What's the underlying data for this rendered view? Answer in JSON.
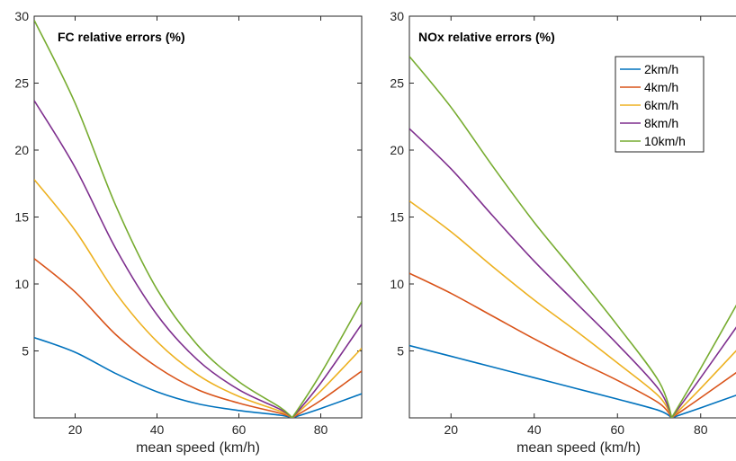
{
  "chart_data": [
    {
      "type": "line",
      "title": "FC relative errors (%)",
      "xlabel": "mean speed (km/h)",
      "ylabel": "",
      "xlim": [
        10,
        90
      ],
      "ylim": [
        0,
        30
      ],
      "xticks": [
        20,
        40,
        60,
        80
      ],
      "yticks": [
        5,
        10,
        15,
        20,
        25,
        30
      ],
      "grid": false,
      "series": [
        {
          "name": "2km/h",
          "color": "#0072BD",
          "x": [
            10,
            20,
            30,
            40,
            50,
            60,
            70,
            73,
            80,
            90
          ],
          "y": [
            6.0,
            4.9,
            3.3,
            1.95,
            1.05,
            0.55,
            0.2,
            0.0,
            0.7,
            1.8
          ]
        },
        {
          "name": "4km/h",
          "color": "#D95319",
          "x": [
            10,
            20,
            30,
            40,
            50,
            60,
            70,
            73,
            80,
            90
          ],
          "y": [
            11.9,
            9.4,
            6.2,
            3.8,
            2.1,
            1.1,
            0.35,
            0.0,
            1.3,
            3.5
          ]
        },
        {
          "name": "6km/h",
          "color": "#EDB120",
          "x": [
            10,
            20,
            30,
            40,
            50,
            60,
            70,
            73,
            80,
            90
          ],
          "y": [
            17.8,
            14.0,
            9.3,
            5.7,
            3.2,
            1.6,
            0.5,
            0.0,
            2.0,
            5.2
          ]
        },
        {
          "name": "8km/h",
          "color": "#7E2F8E",
          "x": [
            10,
            20,
            30,
            40,
            50,
            60,
            70,
            73,
            80,
            90
          ],
          "y": [
            23.7,
            18.7,
            12.6,
            7.7,
            4.3,
            2.1,
            0.65,
            0.0,
            2.6,
            7.0
          ]
        },
        {
          "name": "10km/h",
          "color": "#77AC30",
          "x": [
            10,
            20,
            30,
            40,
            50,
            60,
            70,
            73,
            80,
            90
          ],
          "y": [
            29.7,
            23.5,
            15.8,
            9.6,
            5.4,
            2.7,
            0.8,
            0.0,
            3.3,
            8.7
          ]
        }
      ]
    },
    {
      "type": "line",
      "title": "NOx relative errors (%)",
      "xlabel": "mean speed (km/h)",
      "ylabel": "",
      "xlim": [
        10,
        90
      ],
      "ylim": [
        0,
        30
      ],
      "xticks": [
        20,
        40,
        60,
        80
      ],
      "yticks": [
        5,
        10,
        15,
        20,
        25,
        30
      ],
      "grid": false,
      "legend": "top-right",
      "series": [
        {
          "name": "2km/h",
          "color": "#0072BD",
          "x": [
            10,
            20,
            30,
            40,
            50,
            60,
            70,
            73,
            80,
            90
          ],
          "y": [
            5.4,
            4.6,
            3.8,
            3.0,
            2.2,
            1.4,
            0.55,
            0.0,
            0.75,
            1.85
          ]
        },
        {
          "name": "4km/h",
          "color": "#D95319",
          "x": [
            10,
            20,
            30,
            40,
            50,
            60,
            70,
            73,
            80,
            90
          ],
          "y": [
            10.8,
            9.3,
            7.6,
            5.9,
            4.3,
            2.8,
            1.1,
            0.0,
            1.5,
            3.7
          ]
        },
        {
          "name": "6km/h",
          "color": "#EDB120",
          "x": [
            10,
            20,
            30,
            40,
            50,
            60,
            70,
            73,
            80,
            90
          ],
          "y": [
            16.2,
            13.9,
            11.3,
            8.8,
            6.5,
            4.1,
            1.6,
            0.0,
            2.2,
            5.5
          ]
        },
        {
          "name": "8km/h",
          "color": "#7E2F8E",
          "x": [
            10,
            20,
            30,
            40,
            50,
            60,
            70,
            73,
            80,
            90
          ],
          "y": [
            21.6,
            18.6,
            15.1,
            11.7,
            8.6,
            5.5,
            2.1,
            0.0,
            3.0,
            7.4
          ]
        },
        {
          "name": "10km/h",
          "color": "#77AC30",
          "x": [
            10,
            20,
            30,
            40,
            50,
            60,
            70,
            73,
            80,
            90
          ],
          "y": [
            27.0,
            23.2,
            18.8,
            14.6,
            10.8,
            6.9,
            2.7,
            0.0,
            3.7,
            9.2
          ]
        }
      ]
    }
  ]
}
